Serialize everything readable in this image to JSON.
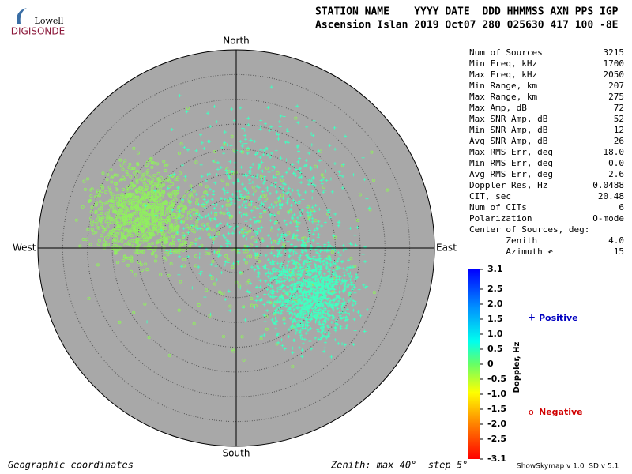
{
  "header": {
    "logo_top": "Lowell",
    "logo_bottom": "DIGISONDE",
    "line1": "STATION NAME    YYYY DATE  DDD HHMMSS AXN PPS IGP",
    "line2": "Ascension Islan 2019 Oct07 280 025630 417 100 -8E"
  },
  "compass": {
    "north": "North",
    "south": "South",
    "east": "East",
    "west": "West"
  },
  "stats": {
    "rows": [
      [
        "Num of Sources",
        "3215"
      ],
      [
        "Min Freq, kHz",
        "1700"
      ],
      [
        "Max Freq, kHz",
        "2050"
      ],
      [
        "Min Range, km",
        "207"
      ],
      [
        "Max Range, km",
        "275"
      ],
      [
        "Max Amp, dB",
        "72"
      ],
      [
        "Max SNR Amp, dB",
        "52"
      ],
      [
        "Min SNR Amp, dB",
        "12"
      ],
      [
        "Avg SNR Amp, dB",
        "26"
      ],
      [
        "Max RMS Err, deg",
        "18.0"
      ],
      [
        "Min RMS Err, deg",
        "0.0"
      ],
      [
        "Avg RMS Err, deg",
        "2.6"
      ],
      [
        "Doppler Res, Hz",
        "0.0488"
      ],
      [
        "CIT, sec",
        "20.48"
      ],
      [
        "Num of CITs",
        "6"
      ],
      [
        "Polarization",
        "O-mode"
      ],
      [
        "Center of Sources, deg:",
        ""
      ],
      [
        "       Zenith",
        "4.0"
      ],
      [
        "       Azimuth ↶",
        "15"
      ]
    ]
  },
  "colorbar": {
    "title": "Doppler, Hz",
    "labels": [
      "3.1",
      "2.5",
      "2.0",
      "1.5",
      "1.0",
      "0.5",
      "0",
      "-0.5",
      "-1.0",
      "-1.5",
      "-2.0",
      "-2.5",
      "-3.1"
    ]
  },
  "legend": {
    "positive_symbol": "+",
    "positive": "Positive",
    "negative_symbol": "o",
    "negative": "Negative"
  },
  "footer": {
    "left": "Geographic coordinates",
    "middle": "Zenith: max 40°  step 5°",
    "right": "ShowSkymap v 1.0  SD v 5.1"
  }
}
